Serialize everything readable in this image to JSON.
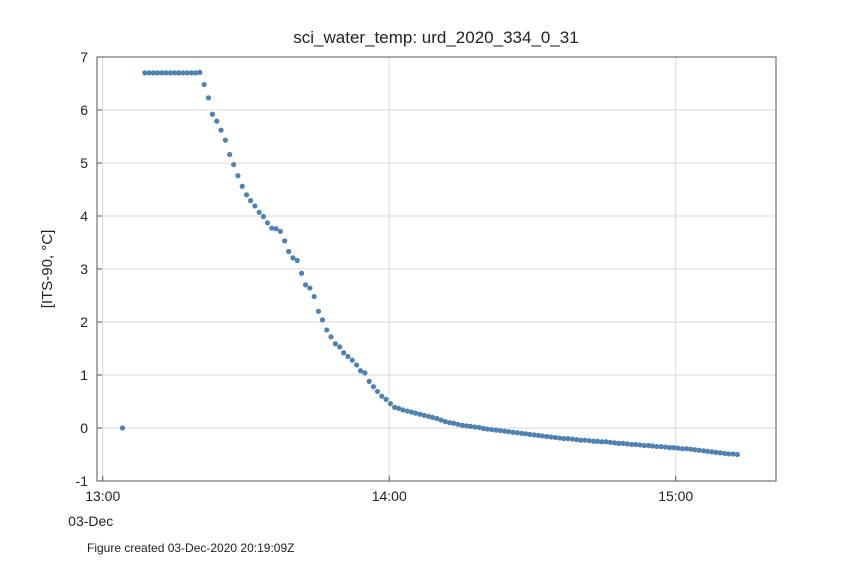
{
  "figure": {
    "footer": "Figure created 03-Dec-2020 20:19:09Z"
  },
  "chart_data": {
    "type": "scatter",
    "title": "sci_water_temp: urd_2020_334_0_31",
    "xlabel": "",
    "ylabel": "[ITS-90, °C]",
    "xlim": [
      12.98,
      15.35
    ],
    "ylim": [
      -1,
      7
    ],
    "grid": true,
    "legend": "none",
    "marker_color": "#4f82b0",
    "x_ticks": [
      {
        "value": 13.0,
        "label": "13:00",
        "sublabel": "03-Dec"
      },
      {
        "value": 14.0,
        "label": "14:00",
        "sublabel": ""
      },
      {
        "value": 15.0,
        "label": "15:00",
        "sublabel": ""
      }
    ],
    "y_ticks": [
      {
        "value": -1,
        "label": "-1"
      },
      {
        "value": 0,
        "label": "0"
      },
      {
        "value": 1,
        "label": "1"
      },
      {
        "value": 2,
        "label": "2"
      },
      {
        "value": 3,
        "label": "3"
      },
      {
        "value": 4,
        "label": "4"
      },
      {
        "value": 5,
        "label": "5"
      },
      {
        "value": 6,
        "label": "6"
      },
      {
        "value": 7,
        "label": "7"
      }
    ],
    "series": [
      {
        "x": [
          13.069,
          13.147,
          13.162,
          13.177,
          13.191,
          13.206,
          13.221,
          13.236,
          13.251,
          13.265,
          13.28,
          13.295,
          13.31,
          13.324,
          13.339,
          13.354,
          13.369,
          13.383,
          13.398,
          13.413,
          13.428,
          13.443,
          13.457,
          13.472,
          13.487,
          13.502,
          13.516,
          13.531,
          13.546,
          13.561,
          13.575,
          13.59,
          13.605,
          13.62,
          13.635,
          13.649,
          13.664,
          13.679,
          13.694,
          13.708,
          13.723,
          13.738,
          13.753,
          13.767,
          13.782,
          13.797,
          13.812,
          13.827,
          13.841,
          13.856,
          13.871,
          13.886,
          13.9,
          13.915,
          13.93,
          13.945,
          13.959,
          13.974,
          13.989,
          14.004,
          14.019,
          14.033,
          14.048,
          14.063,
          14.078,
          14.092,
          14.107,
          14.122,
          14.137,
          14.151,
          14.166,
          14.181,
          14.196,
          14.211,
          14.225,
          14.24,
          14.255,
          14.27,
          14.284,
          14.299,
          14.314,
          14.329,
          14.343,
          14.358,
          14.373,
          14.388,
          14.403,
          14.417,
          14.432,
          14.447,
          14.462,
          14.476,
          14.491,
          14.506,
          14.521,
          14.535,
          14.55,
          14.565,
          14.58,
          14.595,
          14.609,
          14.624,
          14.639,
          14.654,
          14.668,
          14.683,
          14.698,
          14.713,
          14.727,
          14.742,
          14.757,
          14.772,
          14.787,
          14.801,
          14.816,
          14.831,
          14.846,
          14.86,
          14.875,
          14.89,
          14.905,
          14.919,
          14.934,
          14.949,
          14.964,
          14.979,
          14.993,
          15.008,
          15.023,
          15.038,
          15.052,
          15.067,
          15.082,
          15.097,
          15.111,
          15.126,
          15.141,
          15.156,
          15.171,
          15.185,
          15.2,
          15.215
        ],
        "y": [
          0.0,
          6.7,
          6.7,
          6.7,
          6.7,
          6.7,
          6.7,
          6.7,
          6.7,
          6.7,
          6.7,
          6.7,
          6.7,
          6.7,
          6.71,
          6.48,
          6.23,
          5.92,
          5.79,
          5.62,
          5.43,
          5.16,
          4.97,
          4.76,
          4.56,
          4.4,
          4.29,
          4.19,
          4.07,
          3.99,
          3.87,
          3.77,
          3.76,
          3.71,
          3.53,
          3.33,
          3.21,
          3.16,
          2.92,
          2.7,
          2.64,
          2.48,
          2.2,
          2.04,
          1.85,
          1.72,
          1.59,
          1.53,
          1.42,
          1.35,
          1.28,
          1.19,
          1.08,
          1.04,
          0.88,
          0.78,
          0.69,
          0.6,
          0.54,
          0.46,
          0.39,
          0.37,
          0.34,
          0.32,
          0.3,
          0.28,
          0.26,
          0.24,
          0.22,
          0.2,
          0.18,
          0.15,
          0.12,
          0.1,
          0.09,
          0.07,
          0.05,
          0.04,
          0.03,
          0.02,
          0.01,
          -0.01,
          -0.02,
          -0.03,
          -0.04,
          -0.05,
          -0.06,
          -0.07,
          -0.08,
          -0.09,
          -0.1,
          -0.11,
          -0.12,
          -0.13,
          -0.14,
          -0.15,
          -0.16,
          -0.17,
          -0.18,
          -0.19,
          -0.2,
          -0.2,
          -0.21,
          -0.22,
          -0.23,
          -0.23,
          -0.24,
          -0.25,
          -0.25,
          -0.26,
          -0.26,
          -0.27,
          -0.28,
          -0.29,
          -0.29,
          -0.3,
          -0.31,
          -0.31,
          -0.32,
          -0.33,
          -0.33,
          -0.34,
          -0.35,
          -0.35,
          -0.36,
          -0.37,
          -0.37,
          -0.38,
          -0.39,
          -0.39,
          -0.4,
          -0.41,
          -0.42,
          -0.43,
          -0.44,
          -0.45,
          -0.46,
          -0.47,
          -0.48,
          -0.49,
          -0.49,
          -0.5
        ]
      }
    ]
  }
}
